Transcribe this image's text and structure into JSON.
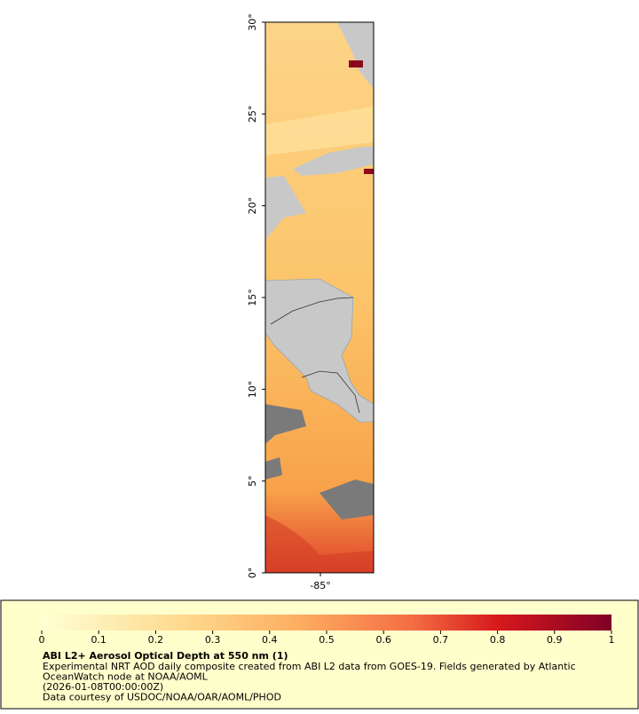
{
  "map": {
    "ylim": [
      0,
      30
    ],
    "yticks": [
      {
        "value": 0,
        "label": "0°"
      },
      {
        "value": 5,
        "label": "5°"
      },
      {
        "value": 10,
        "label": "10°"
      },
      {
        "value": 15,
        "label": "15°"
      },
      {
        "value": 20,
        "label": "20°"
      },
      {
        "value": 25,
        "label": "25°"
      },
      {
        "value": 30,
        "label": "30°"
      }
    ],
    "xlim": [
      -88,
      -82.1
    ],
    "xticks": [
      {
        "value": -85,
        "label": "-85°"
      }
    ]
  },
  "colorbar": {
    "range": [
      0,
      1
    ],
    "ticks": [
      0,
      0.1,
      0.2,
      0.3,
      0.4,
      0.5,
      0.6,
      0.7,
      0.8,
      0.9,
      1
    ]
  },
  "legend": {
    "title": "ABI L2+ Aerosol Optical Depth at 550 nm (1)",
    "lines": [
      "Experimental NRT AOD daily composite created from ABI L2 data from GOES-19. Fields generated by Atlantic",
      "OceanWatch node at NOAA/AOML",
      "(2026-01-08T00:00:00Z)",
      "Data courtesy of USDOC/NOAA/OAR/AOML/PHOD"
    ]
  }
}
